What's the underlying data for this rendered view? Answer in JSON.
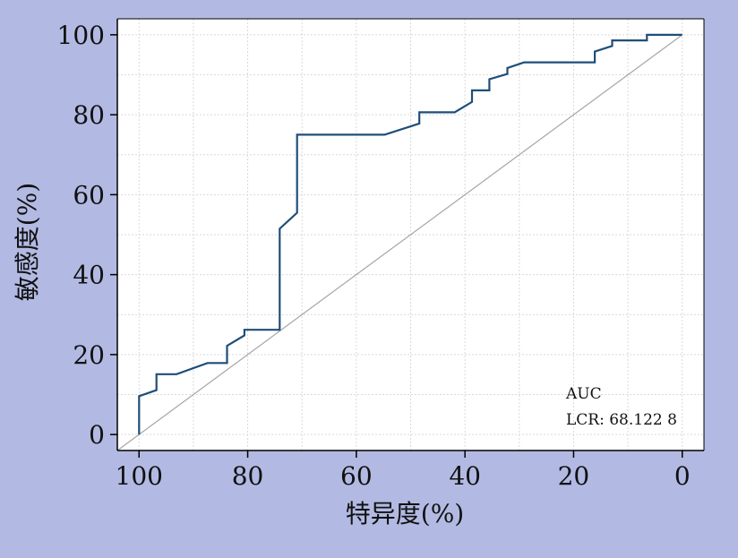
{
  "chart_data": {
    "type": "line",
    "xlabel": "特异度(%)",
    "ylabel": "敏感度(%)",
    "x_reversed": true,
    "xlim": [
      104,
      -4
    ],
    "ylim": [
      -4,
      104
    ],
    "grid": true,
    "x_ticks": [
      100,
      80,
      60,
      40,
      20,
      0
    ],
    "y_ticks": [
      0,
      20,
      40,
      60,
      80,
      100
    ],
    "annotation_lines": [
      "AUC",
      "LCR: 68.122 8"
    ],
    "series": [
      {
        "kind": "roc-curve",
        "color": "#1f4e79",
        "points": [
          [
            100,
            0
          ],
          [
            100,
            9.6
          ],
          [
            96.8,
            11.1
          ],
          [
            96.8,
            15.1
          ],
          [
            93.1,
            15.1
          ],
          [
            87.4,
            17.9
          ],
          [
            83.8,
            17.9
          ],
          [
            83.8,
            22.2
          ],
          [
            80.6,
            24.8
          ],
          [
            80.6,
            26.2
          ],
          [
            74.1,
            26.2
          ],
          [
            74.1,
            51.5
          ],
          [
            70.9,
            55.5
          ],
          [
            70.9,
            75.0
          ],
          [
            54.8,
            75.0
          ],
          [
            48.4,
            77.8
          ],
          [
            48.4,
            80.6
          ],
          [
            41.9,
            80.6
          ],
          [
            38.7,
            83.2
          ],
          [
            38.7,
            86.1
          ],
          [
            35.5,
            86.1
          ],
          [
            35.5,
            88.9
          ],
          [
            32.2,
            90.2
          ],
          [
            32.2,
            91.7
          ],
          [
            29.1,
            93.1
          ],
          [
            16.1,
            93.1
          ],
          [
            16.1,
            95.8
          ],
          [
            12.9,
            97.2
          ],
          [
            12.9,
            98.6
          ],
          [
            6.5,
            98.6
          ],
          [
            6.5,
            100
          ],
          [
            0,
            100
          ]
        ]
      },
      {
        "kind": "reference-diagonal",
        "color": "#a6a6a6",
        "points": [
          [
            104,
            -4
          ],
          [
            0,
            100
          ]
        ]
      }
    ]
  }
}
